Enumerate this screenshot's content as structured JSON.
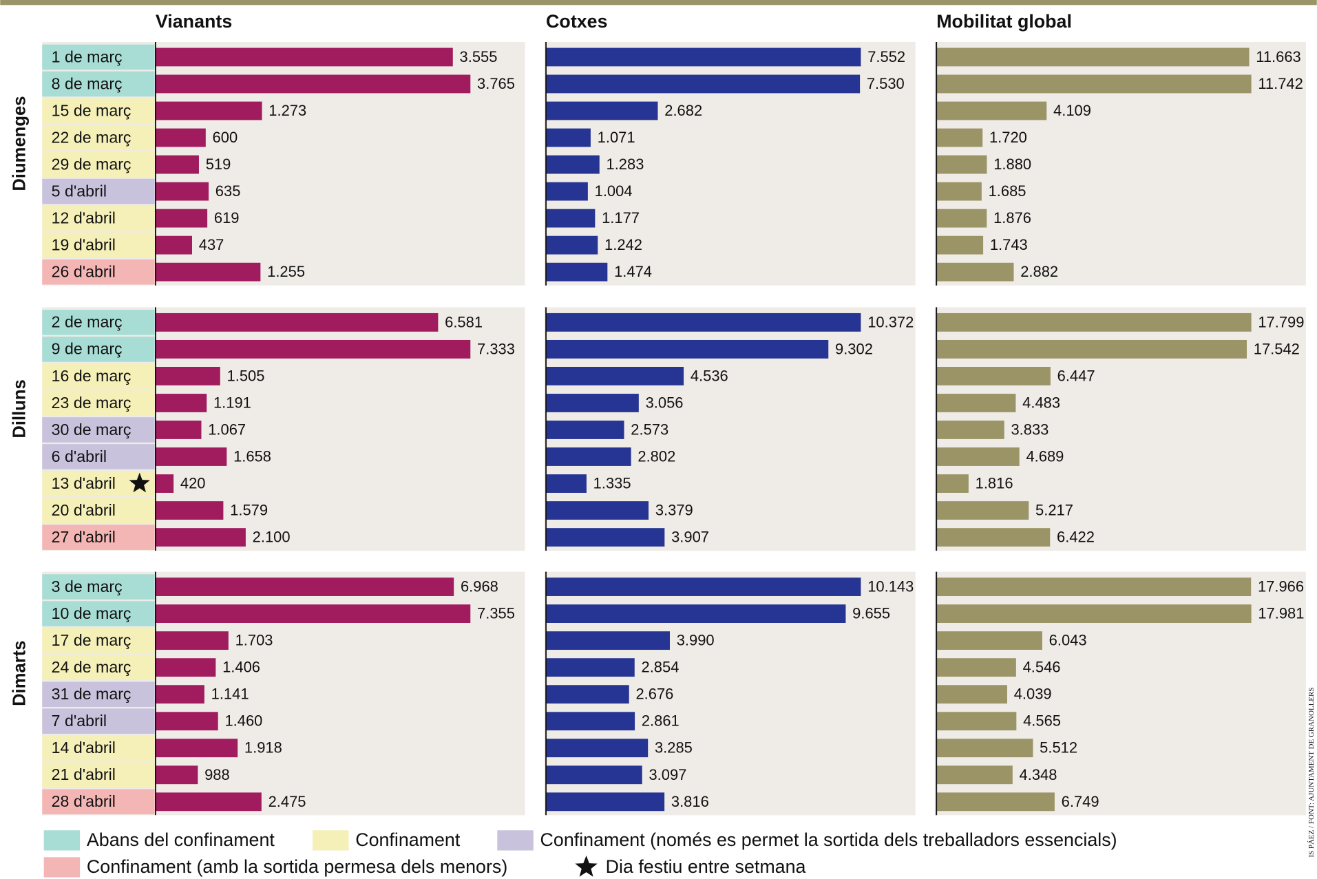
{
  "chart_data": {
    "type": "bar",
    "columns": [
      {
        "name": "Vianants",
        "color": "#a01c5f"
      },
      {
        "name": "Cotxes",
        "color": "#263593"
      },
      {
        "name": "Mobilitat global",
        "color": "#9a9467"
      }
    ],
    "legend": [
      {
        "name": "Abans del confinament",
        "color": "#a8ddd6"
      },
      {
        "name": "Confinament",
        "color": "#f5efb8"
      },
      {
        "name": "Confinament (només es permet la sortida dels treballadors essencials)",
        "color": "#c8c2dc"
      },
      {
        "name": "Confinament (amb la sortida permesa dels menors)",
        "color": "#f4b6b4"
      }
    ],
    "holiday_label": "Dia festiu entre setmana",
    "credit": "IS PÁEZ / FONT: AJUNTAMENT DE GRANOLLERS",
    "groups": [
      {
        "name": "Diumenges",
        "categories": [
          "1 de març",
          "8 de març",
          "15 de març",
          "22 de març",
          "29 de març",
          "5 d'abril",
          "12 d'abril",
          "19 d'abril",
          "26 d'abril"
        ],
        "phases": [
          0,
          0,
          1,
          1,
          1,
          2,
          1,
          1,
          3
        ],
        "holidays": [],
        "series": [
          {
            "values": [
              3555,
              3765,
              1273,
              600,
              519,
              635,
              619,
              437,
              1255
            ],
            "value_labels": [
              "3.555",
              "3.765",
              "1.273",
              "600",
              "519",
              "635",
              "619",
              "437",
              "1.255"
            ]
          },
          {
            "values": [
              7552,
              7530,
              2682,
              1071,
              1283,
              1004,
              1177,
              1242,
              1474
            ],
            "value_labels": [
              "7.552",
              "7.530",
              "2.682",
              "1.071",
              "1.283",
              "1.004",
              "1.177",
              "1.242",
              "1.474"
            ]
          },
          {
            "values": [
              11663,
              11742,
              4109,
              1720,
              1880,
              1685,
              1876,
              1743,
              2882
            ],
            "value_labels": [
              "11.663",
              "11.742",
              "4.109",
              "1.720",
              "1.880",
              "1.685",
              "1.876",
              "1.743",
              "2.882"
            ]
          }
        ]
      },
      {
        "name": "Dilluns",
        "categories": [
          "2 de març",
          "9 de març",
          "16 de març",
          "23 de març",
          "30 de març",
          "6 d'abril",
          "13 d'abril",
          "20 d'abril",
          "27 d'abril"
        ],
        "phases": [
          0,
          0,
          1,
          1,
          2,
          2,
          1,
          1,
          3
        ],
        "holidays": [
          6
        ],
        "series": [
          {
            "values": [
              6581,
              7333,
              1505,
              1191,
              1067,
              1658,
              420,
              1579,
              2100
            ],
            "value_labels": [
              "6.581",
              "7.333",
              "1.505",
              "1.191",
              "1.067",
              "1.658",
              "420",
              "1.579",
              "2.100"
            ]
          },
          {
            "values": [
              10372,
              9302,
              4536,
              3056,
              2573,
              2802,
              1335,
              3379,
              3907
            ],
            "value_labels": [
              "10.372",
              "9.302",
              "4.536",
              "3.056",
              "2.573",
              "2.802",
              "1.335",
              "3.379",
              "3.907"
            ]
          },
          {
            "values": [
              17799,
              17542,
              6447,
              4483,
              3833,
              4689,
              1816,
              5217,
              6422
            ],
            "value_labels": [
              "17.799",
              "17.542",
              "6.447",
              "4.483",
              "3.833",
              "4.689",
              "1.816",
              "5.217",
              "6.422"
            ]
          }
        ]
      },
      {
        "name": "Dimarts",
        "categories": [
          "3 de març",
          "10 de març",
          "17 de març",
          "24 de març",
          "31 de març",
          "7 d'abril",
          "14 d'abril",
          "21 d'abril",
          "28 d'abril"
        ],
        "phases": [
          0,
          0,
          1,
          1,
          2,
          2,
          1,
          1,
          3
        ],
        "holidays": [],
        "series": [
          {
            "values": [
              6968,
              7355,
              1703,
              1406,
              1141,
              1460,
              1918,
              988,
              2475
            ],
            "value_labels": [
              "6.968",
              "7.355",
              "1.703",
              "1.406",
              "1.141",
              "1.460",
              "1.918",
              "988",
              "2.475"
            ]
          },
          {
            "values": [
              10143,
              9655,
              3990,
              2854,
              2676,
              2861,
              3285,
              3097,
              3816
            ],
            "value_labels": [
              "10.143",
              "9.655",
              "3.990",
              "2.854",
              "2.676",
              "2.861",
              "3.285",
              "3.097",
              "3.816"
            ]
          },
          {
            "values": [
              17966,
              17981,
              6043,
              4546,
              4039,
              4565,
              5512,
              4348,
              6749
            ],
            "value_labels": [
              "17.966",
              "17.981",
              "6.043",
              "4.546",
              "4.039",
              "4.565",
              "5.512",
              "4.348",
              "6.749"
            ]
          }
        ]
      }
    ]
  }
}
